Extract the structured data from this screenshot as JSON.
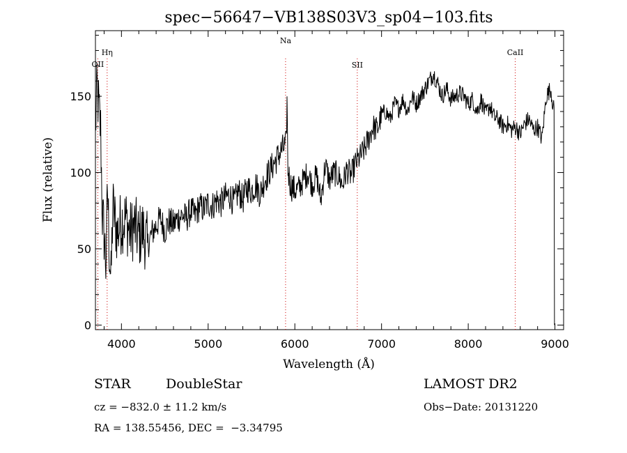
{
  "chart_data": {
    "type": "line",
    "title": "spec−56647−VB138S03V3_sp04−103.fits",
    "xlabel": "Wavelength (Å)",
    "ylabel": "Flux (relative)",
    "xlim": [
      3700,
      9100
    ],
    "ylim": [
      -3,
      193
    ],
    "x_ticks": [
      4000,
      5000,
      6000,
      7000,
      8000,
      9000
    ],
    "y_ticks": [
      0,
      50,
      100,
      150
    ],
    "grid": false,
    "line_color": "#000000",
    "marker_color": "#cc0000",
    "lines": [
      {
        "label": "OII",
        "x": 3727
      },
      {
        "label": "Hη",
        "x": 3835
      },
      {
        "label": "Na",
        "x": 5893
      },
      {
        "label": "SII",
        "x": 6720
      },
      {
        "label": "CaII",
        "x": 8542
      }
    ],
    "series": [
      {
        "x": [
          3700,
          3720,
          3740,
          3760,
          3780,
          3800,
          3820,
          3840,
          3860,
          3880,
          3900,
          3950,
          4000,
          4050,
          4100,
          4150,
          4200,
          4250,
          4300,
          4350,
          4400,
          4450,
          4500,
          4550,
          4600,
          4650,
          4700,
          4750,
          4800,
          4850,
          4900,
          4950,
          5000,
          5050,
          5100,
          5150,
          5200,
          5250,
          5300,
          5350,
          5400,
          5450,
          5500,
          5550,
          5600,
          5650,
          5700,
          5750,
          5800,
          5850,
          5900,
          5910,
          5920,
          5950,
          6000,
          6050,
          6100,
          6150,
          6200,
          6250,
          6300,
          6350,
          6400,
          6450,
          6500,
          6550,
          6600,
          6650,
          6700,
          6750,
          6800,
          6850,
          6900,
          6950,
          7000,
          7050,
          7100,
          7150,
          7200,
          7250,
          7300,
          7350,
          7400,
          7450,
          7500,
          7550,
          7600,
          7650,
          7700,
          7750,
          7800,
          7850,
          7900,
          7950,
          8000,
          8050,
          8100,
          8150,
          8200,
          8250,
          8300,
          8350,
          8400,
          8450,
          8500,
          8550,
          8600,
          8650,
          8700,
          8750,
          8800,
          8850,
          8900,
          8950,
          8990
        ],
        "y": [
          130,
          155,
          140,
          128,
          72,
          60,
          40,
          88,
          50,
          28,
          78,
          60,
          68,
          70,
          60,
          65,
          58,
          62,
          52,
          60,
          65,
          70,
          62,
          68,
          66,
          70,
          72,
          70,
          75,
          72,
          78,
          76,
          80,
          78,
          82,
          80,
          84,
          85,
          80,
          88,
          82,
          90,
          88,
          92,
          86,
          95,
          100,
          105,
          110,
          115,
          118,
          148,
          102,
          92,
          88,
          90,
          95,
          100,
          92,
          98,
          82,
          105,
          95,
          100,
          98,
          92,
          102,
          98,
          106,
          110,
          115,
          122,
          130,
          128,
          138,
          140,
          135,
          145,
          142,
          148,
          140,
          150,
          145,
          150,
          155,
          160,
          165,
          158,
          150,
          155,
          148,
          150,
          152,
          150,
          145,
          148,
          140,
          148,
          138,
          144,
          136,
          135,
          130,
          132,
          128,
          130,
          125,
          132,
          135,
          128,
          130,
          122,
          150,
          155,
          140
        ]
      }
    ],
    "info": {
      "class": "STAR",
      "subclass": "DoubleStar",
      "survey": "LAMOST DR2",
      "cz": "cz = −832.0 ± 11.2 km/s",
      "obs_date": "Obs−Date: 20131220",
      "coords": "RA = 138.55456, DEC =  −3.34795"
    }
  }
}
